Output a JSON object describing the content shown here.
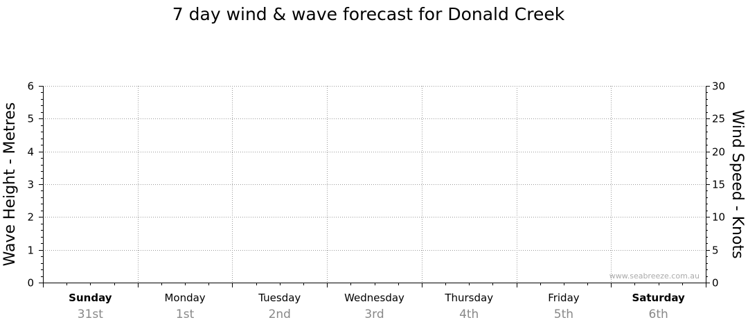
{
  "chart_data": {
    "type": "line",
    "title": "7 day wind & wave forecast for Donald Creek",
    "ylabel_left": "Wave Height - Metres",
    "ylabel_right": "Wind Speed - Knots",
    "ylim_left": [
      0,
      6
    ],
    "ylim_right": [
      0,
      30
    ],
    "yticks_left": [
      "0",
      "1",
      "2",
      "3",
      "4",
      "5",
      "6"
    ],
    "yticks_right": [
      "0",
      "5",
      "10",
      "15",
      "20",
      "25",
      "30"
    ],
    "grid": true,
    "days": [
      {
        "name": "Sunday",
        "date": "31st",
        "bold": true
      },
      {
        "name": "Monday",
        "date": "1st",
        "bold": false
      },
      {
        "name": "Tuesday",
        "date": "2nd",
        "bold": false
      },
      {
        "name": "Wednesday",
        "date": "3rd",
        "bold": false
      },
      {
        "name": "Thursday",
        "date": "4th",
        "bold": false
      },
      {
        "name": "Friday",
        "date": "5th",
        "bold": false
      },
      {
        "name": "Saturday",
        "date": "6th",
        "bold": true
      }
    ],
    "series": [],
    "watermark": "www.seabreeze.com.au"
  }
}
